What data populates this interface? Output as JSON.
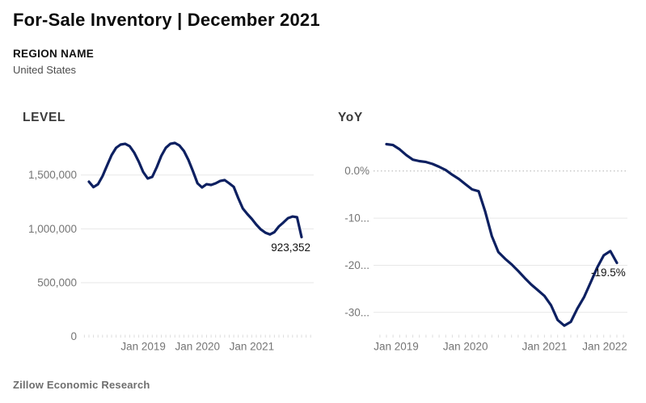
{
  "header": {
    "title": "For-Sale Inventory | December 2021",
    "region_label": "REGION NAME",
    "region_value": "United States"
  },
  "footer": {
    "source": "Zillow Economic Research"
  },
  "colors": {
    "line": "#0d2061",
    "grid": "#e7e7e7",
    "grid_dotted": "#b0b0b0",
    "minor_tick": "#dcdcdc",
    "axis_text": "#757575",
    "value_label": "#111111"
  },
  "chart_data": [
    {
      "type": "line",
      "name": "level",
      "title": "LEVEL",
      "x": [
        "Jan 2018",
        "Feb 2018",
        "Mar 2018",
        "Apr 2018",
        "May 2018",
        "Jun 2018",
        "Jul 2018",
        "Aug 2018",
        "Sep 2018",
        "Oct 2018",
        "Nov 2018",
        "Dec 2018",
        "Jan 2019",
        "Feb 2019",
        "Mar 2019",
        "Apr 2019",
        "May 2019",
        "Jun 2019",
        "Jul 2019",
        "Aug 2019",
        "Sep 2019",
        "Oct 2019",
        "Nov 2019",
        "Dec 2019",
        "Jan 2020",
        "Feb 2020",
        "Mar 2020",
        "Apr 2020",
        "May 2020",
        "Jun 2020",
        "Jul 2020",
        "Aug 2020",
        "Sep 2020",
        "Oct 2020",
        "Nov 2020",
        "Dec 2020",
        "Jan 2021",
        "Feb 2021",
        "Mar 2021",
        "Apr 2021",
        "May 2021",
        "Jun 2021",
        "Jul 2021",
        "Aug 2021",
        "Sep 2021",
        "Oct 2021",
        "Nov 2021",
        "Dec 2021"
      ],
      "values": [
        1438000,
        1388000,
        1415000,
        1490000,
        1588000,
        1685000,
        1753000,
        1783000,
        1790000,
        1768000,
        1708000,
        1625000,
        1528000,
        1468000,
        1483000,
        1573000,
        1678000,
        1753000,
        1790000,
        1798000,
        1775000,
        1723000,
        1640000,
        1535000,
        1423000,
        1385000,
        1415000,
        1408000,
        1423000,
        1445000,
        1453000,
        1423000,
        1390000,
        1285000,
        1190000,
        1138000,
        1093000,
        1040000,
        995000,
        965000,
        948000,
        970000,
        1023000,
        1060000,
        1100000,
        1115000,
        1108000,
        923352
      ],
      "ylim": [
        0,
        1900000
      ],
      "y_ticks": [
        {
          "value": 1500000,
          "label": "1,500,000",
          "line": "solid"
        },
        {
          "value": 1000000,
          "label": "1,000,000",
          "line": "solid"
        },
        {
          "value": 500000,
          "label": "500,000",
          "line": "solid"
        },
        {
          "value": 0,
          "label": "0",
          "line": "none"
        }
      ],
      "x_ticks": [
        {
          "index": 12,
          "label": "Jan 2019"
        },
        {
          "index": 24,
          "label": "Jan 2020"
        },
        {
          "index": 36,
          "label": "Jan 2021"
        }
      ],
      "end_label": "923,352",
      "xlabel": "",
      "ylabel": "",
      "grid": "on",
      "legend": "none"
    },
    {
      "type": "line",
      "name": "yoy",
      "title": "YoY",
      "x": [
        "Jan 2019",
        "Feb 2019",
        "Mar 2019",
        "Apr 2019",
        "May 2019",
        "Jun 2019",
        "Jul 2019",
        "Aug 2019",
        "Sep 2019",
        "Oct 2019",
        "Nov 2019",
        "Dec 2019",
        "Jan 2020",
        "Feb 2020",
        "Mar 2020",
        "Apr 2020",
        "May 2020",
        "Jun 2020",
        "Jul 2020",
        "Aug 2020",
        "Sep 2020",
        "Oct 2020",
        "Nov 2020",
        "Dec 2020",
        "Jan 2021",
        "Feb 2021",
        "Mar 2021",
        "Apr 2021",
        "May 2021",
        "Jun 2021",
        "Jul 2021",
        "Aug 2021",
        "Sep 2021",
        "Oct 2021",
        "Nov 2021",
        "Dec 2021"
      ],
      "values": [
        5.7,
        5.5,
        4.6,
        3.4,
        2.4,
        2.1,
        1.9,
        1.5,
        0.9,
        0.2,
        -0.8,
        -1.7,
        -2.8,
        -3.9,
        -4.3,
        -8.6,
        -13.8,
        -17.2,
        -18.6,
        -19.8,
        -21.2,
        -22.7,
        -24.1,
        -25.3,
        -26.5,
        -28.5,
        -31.6,
        -32.8,
        -32.0,
        -29.2,
        -26.8,
        -23.7,
        -20.5,
        -17.9,
        -17.0,
        -19.5
      ],
      "ylim": [
        -35,
        9
      ],
      "y_ticks": [
        {
          "value": 0,
          "label": "0.0%",
          "line": "dotted"
        },
        {
          "value": -10,
          "label": "-10...",
          "line": "solid"
        },
        {
          "value": -20,
          "label": "-20...",
          "line": "solid"
        },
        {
          "value": -30,
          "label": "-30...",
          "line": "solid"
        }
      ],
      "x_ticks": [
        {
          "index": 0,
          "label": "Jan 2019"
        },
        {
          "index": 12,
          "label": "Jan 2020"
        },
        {
          "index": 24,
          "label": "Jan 2021"
        },
        {
          "index": 36,
          "label": "Jan 2022"
        }
      ],
      "end_label": "-19.5%",
      "xlabel": "",
      "ylabel": "",
      "grid": "on",
      "legend": "none"
    }
  ]
}
